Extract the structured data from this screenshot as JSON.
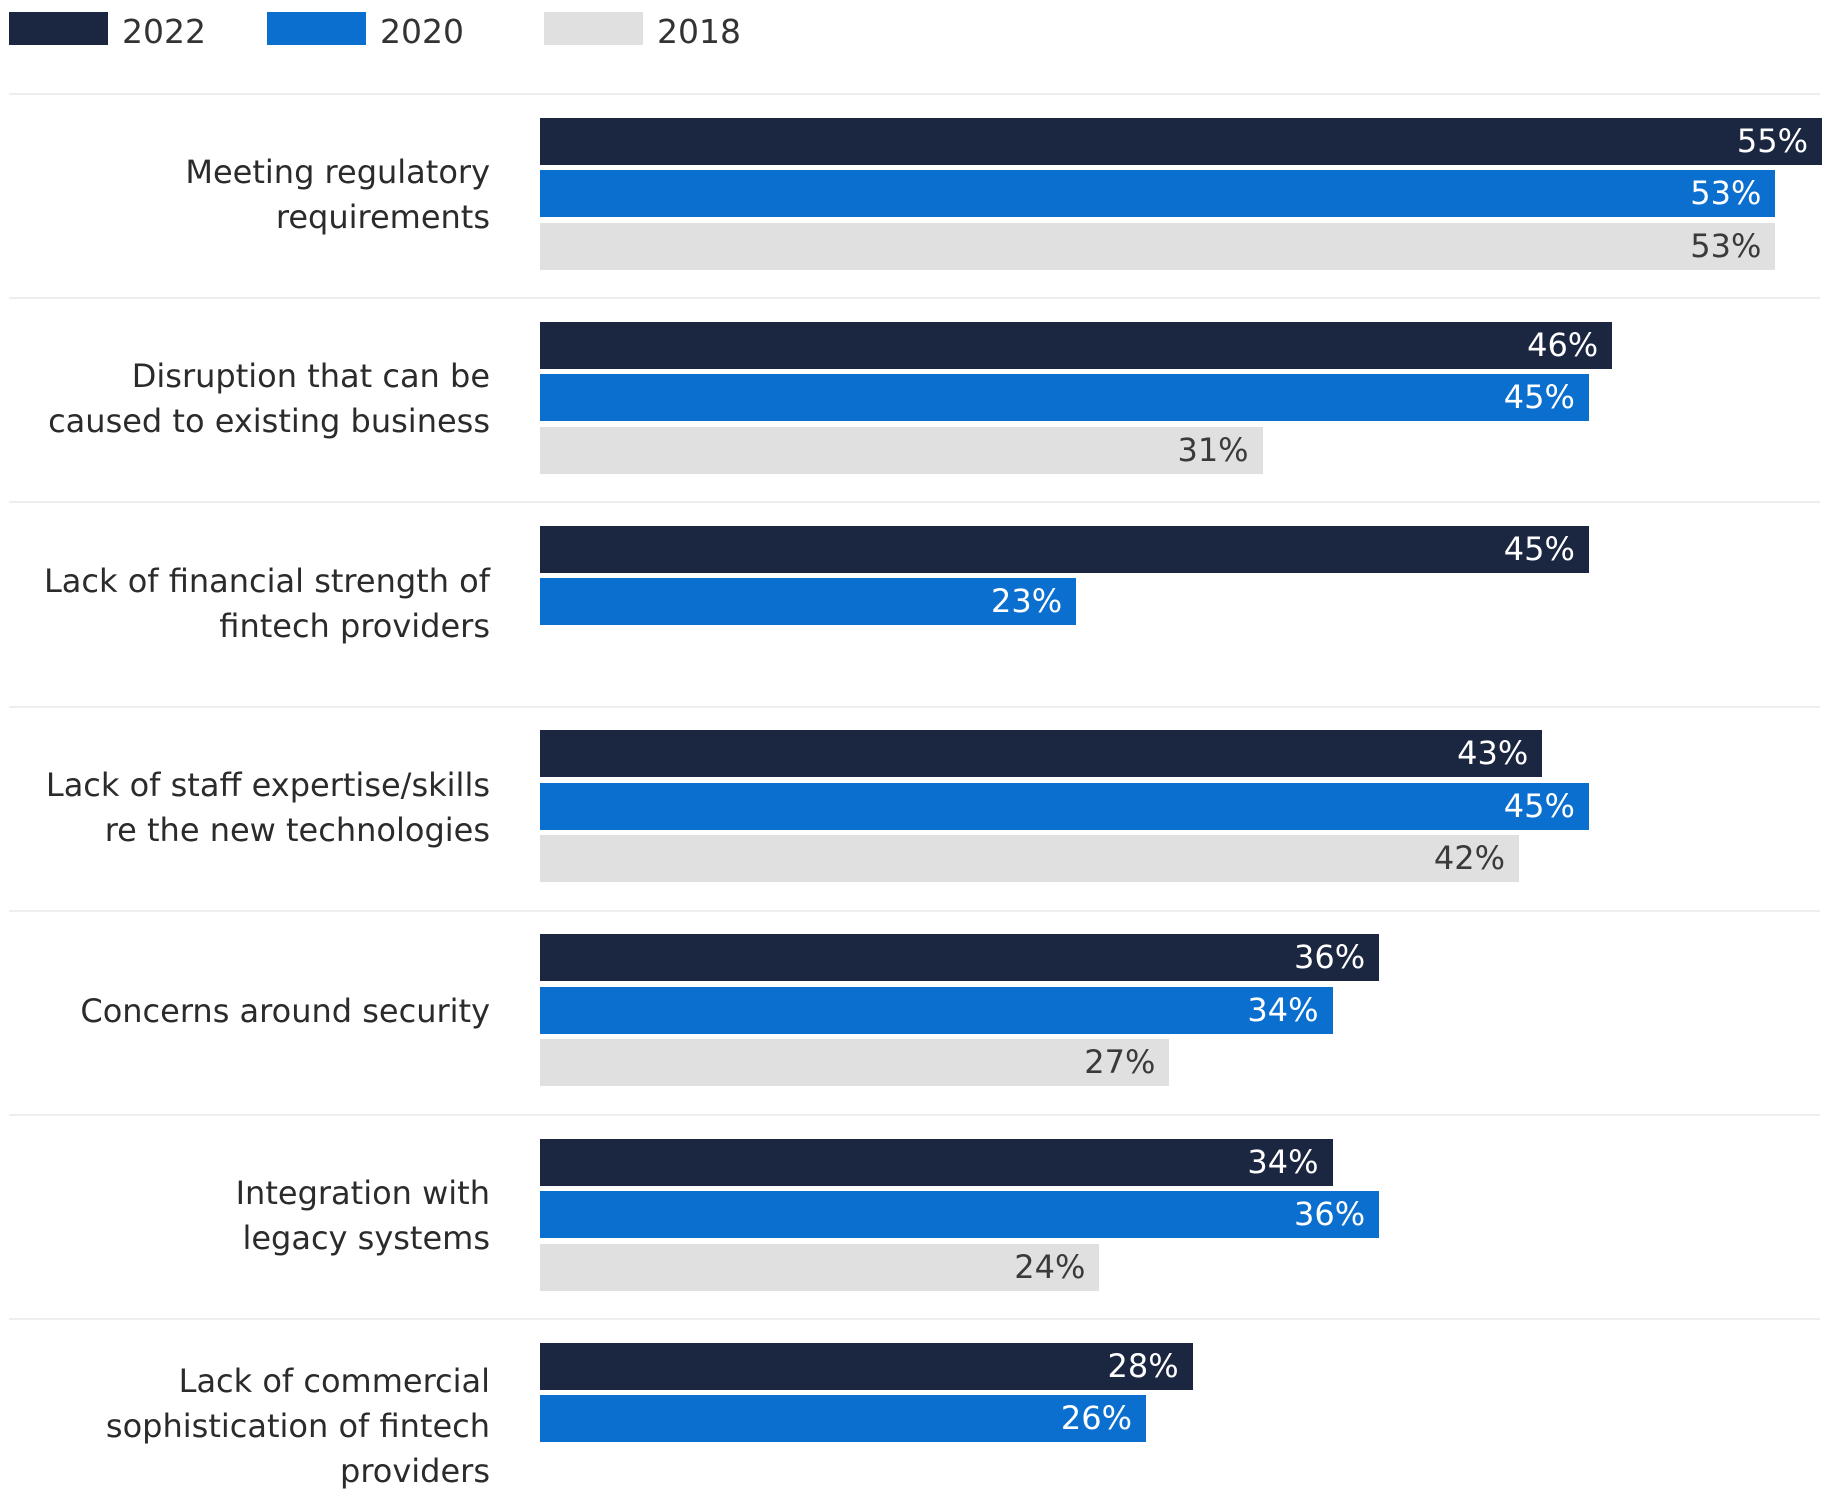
{
  "chart_data": {
    "type": "bar",
    "orientation": "horizontal",
    "categories": [
      [
        "Meeting regulatory",
        "requirements"
      ],
      [
        "Disruption that can be",
        "caused to existing business"
      ],
      [
        "Lack of financial strength of",
        "fintech providers"
      ],
      [
        "Lack of staff expertise/skills",
        "re the new technologies"
      ],
      [
        "Concerns around security"
      ],
      [
        "Integration with",
        "legacy systems"
      ],
      [
        "Lack of commercial",
        "sophistication of fintech",
        "providers"
      ]
    ],
    "series": [
      {
        "name": "2022",
        "color": "#1b2640",
        "label_color": "#ffffff",
        "values": [
          55,
          46,
          45,
          43,
          36,
          34,
          28
        ],
        "value_labels": [
          "55%",
          "46%",
          "45%",
          "43%",
          "36%",
          "34%",
          "28%"
        ]
      },
      {
        "name": "2020",
        "color": "#0b6fcf",
        "label_color": "#ffffff",
        "values": [
          53,
          45,
          23,
          45,
          34,
          36,
          26
        ],
        "value_labels": [
          "53%",
          "45%",
          "23%",
          "45%",
          "34%",
          "36%",
          "26%"
        ]
      },
      {
        "name": "2018",
        "color": "#e0e0e0",
        "label_color": "#3a3a3a",
        "values": [
          53,
          31,
          null,
          42,
          27,
          24,
          null
        ],
        "value_labels": [
          "53%",
          "31%",
          null,
          "42%",
          "27%",
          "24%",
          null
        ]
      }
    ],
    "legend": "top-left"
  }
}
